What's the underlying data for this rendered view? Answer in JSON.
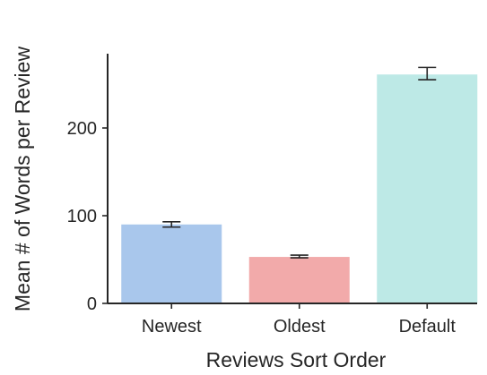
{
  "chart_data": {
    "type": "bar",
    "title": "",
    "xlabel": "Reviews Sort Order",
    "ylabel": "Mean # of Words per Review",
    "categories": [
      "Newest",
      "Oldest",
      "Default"
    ],
    "values": [
      90,
      53,
      261
    ],
    "error_low": [
      87,
      52,
      255
    ],
    "error_high": [
      93,
      55,
      269
    ],
    "colors": [
      "#a9c7ec",
      "#f2aaaa",
      "#bde9e6"
    ],
    "yticks": [
      0,
      100,
      200
    ],
    "ylim": [
      0,
      280
    ],
    "grid": false,
    "legend": "none"
  }
}
